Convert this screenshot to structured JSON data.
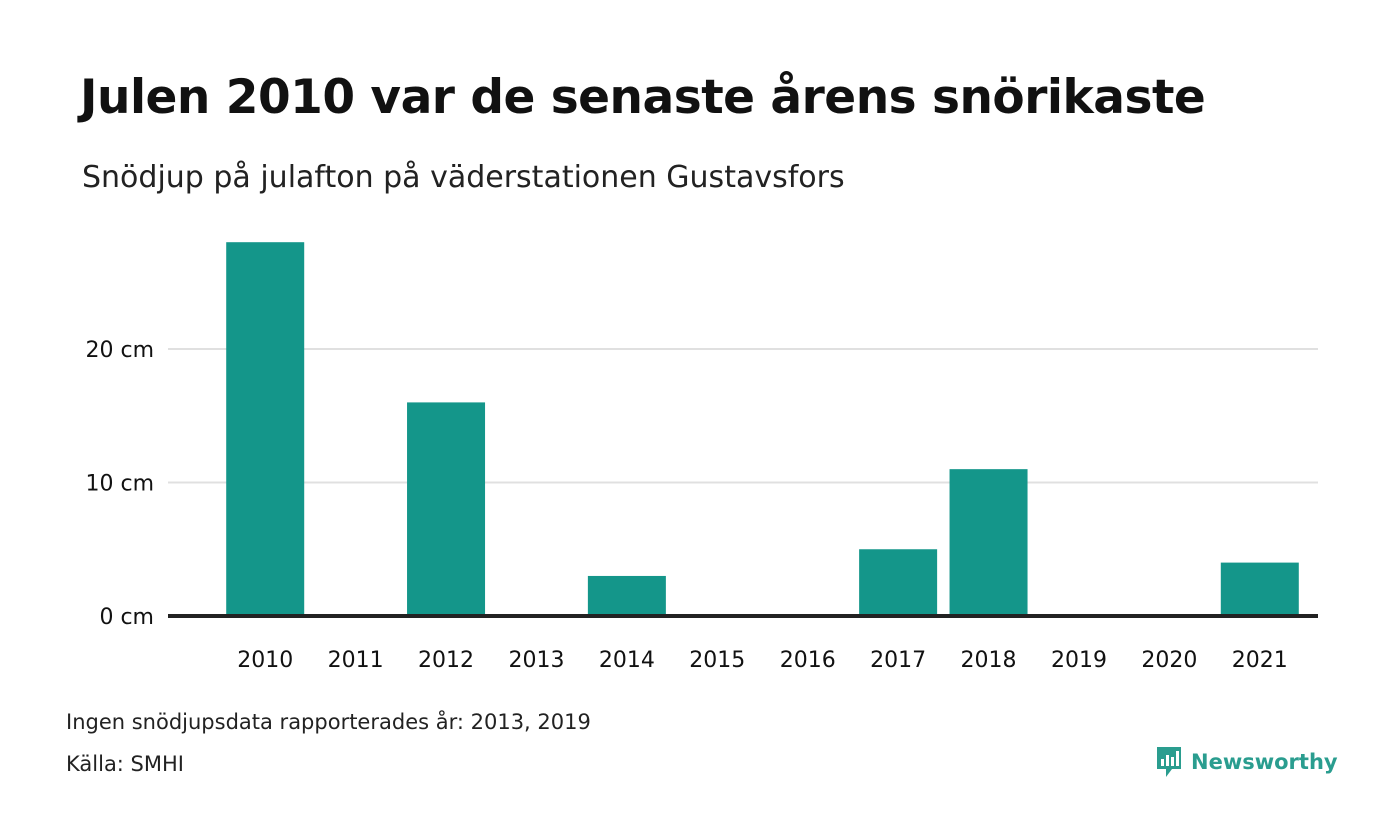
{
  "header": {
    "title": "Julen 2010 var de senaste årens snörikaste",
    "subtitle": "Snödjup på julafton på väderstationen Gustavsfors"
  },
  "footer": {
    "note": "Ingen snödjupsdata rapporterades år: 2013, 2019",
    "source": "Källa: SMHI",
    "brand": "Newsworthy"
  },
  "colors": {
    "bar": "#14968a",
    "grid": "#e0e0e0",
    "baseline": "#222222",
    "brand": "#2a9d8f"
  },
  "chart_data": {
    "type": "bar",
    "title": "Julen 2010 var de senaste årens snörikaste",
    "subtitle": "Snödjup på julafton på väderstationen Gustavsfors",
    "categories": [
      "2010",
      "2011",
      "2012",
      "2013",
      "2014",
      "2015",
      "2016",
      "2017",
      "2018",
      "2019",
      "2020",
      "2021"
    ],
    "values": [
      28,
      0,
      16,
      null,
      3,
      0,
      0,
      5,
      11,
      null,
      0,
      4
    ],
    "unit": "cm",
    "yticks": [
      0,
      10,
      20
    ],
    "ytick_labels": [
      "0 cm",
      "10 cm",
      "20 cm"
    ],
    "ylim": [
      0,
      28
    ],
    "grid": true,
    "legend": "none"
  }
}
